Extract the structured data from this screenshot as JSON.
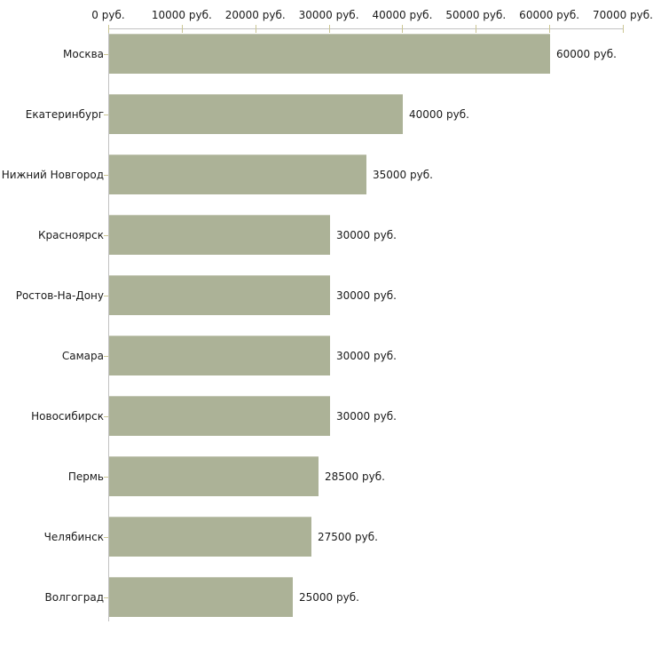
{
  "chart_data": {
    "type": "bar",
    "orientation": "horizontal",
    "title": "",
    "xlabel": "",
    "ylabel": "",
    "unit": "руб.",
    "categories": [
      "Москва",
      "Екатеринбург",
      "Нижний Новгород",
      "Красноярск",
      "Ростов-На-Дону",
      "Самара",
      "Новосибирск",
      "Пермь",
      "Челябинск",
      "Волгоград"
    ],
    "values": [
      60000,
      40000,
      35000,
      30000,
      30000,
      30000,
      30000,
      28500,
      27500,
      25000
    ],
    "value_labels": [
      "60000 руб.",
      "40000 руб.",
      "35000 руб.",
      "30000 руб.",
      "30000 руб.",
      "30000 руб.",
      "30000 руб.",
      "28500 руб.",
      "27500 руб.",
      "25000 руб."
    ],
    "x_ticks": [
      0,
      10000,
      20000,
      30000,
      40000,
      50000,
      60000,
      70000
    ],
    "x_tick_labels": [
      "0 руб.",
      "10000 руб.",
      "20000 руб.",
      "30000 руб.",
      "40000 руб.",
      "50000 руб.",
      "60000 руб.",
      "70000 руб."
    ],
    "xlim": [
      0,
      70000
    ],
    "grid": false,
    "legend": false,
    "colors": {
      "bar_fill": "#acb297",
      "axis_line": "#c2c2c2",
      "tick_mark": "#cbc693",
      "text": "#1a1a1a",
      "background": "#ffffff"
    }
  }
}
